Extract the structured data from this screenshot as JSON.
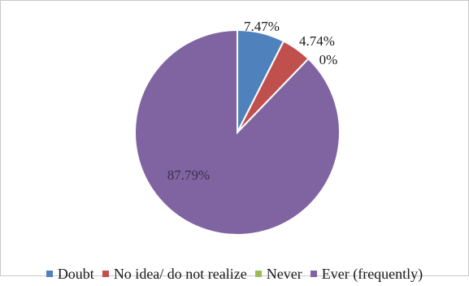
{
  "chart_data": {
    "type": "pie",
    "title": "",
    "slices": [
      {
        "label": "Doubt",
        "value": 7.47,
        "display": "7.47%",
        "color": "#4f81bd"
      },
      {
        "label": "No idea/ do not realize",
        "value": 4.74,
        "display": "4.74%",
        "color": "#c0504d"
      },
      {
        "label": "Never",
        "value": 0,
        "display": "0%",
        "color": "#9bbb59"
      },
      {
        "label": "Ever (frequently)",
        "value": 87.79,
        "display": "87.79%",
        "color": "#8064a2"
      }
    ],
    "legend_position": "bottom"
  }
}
